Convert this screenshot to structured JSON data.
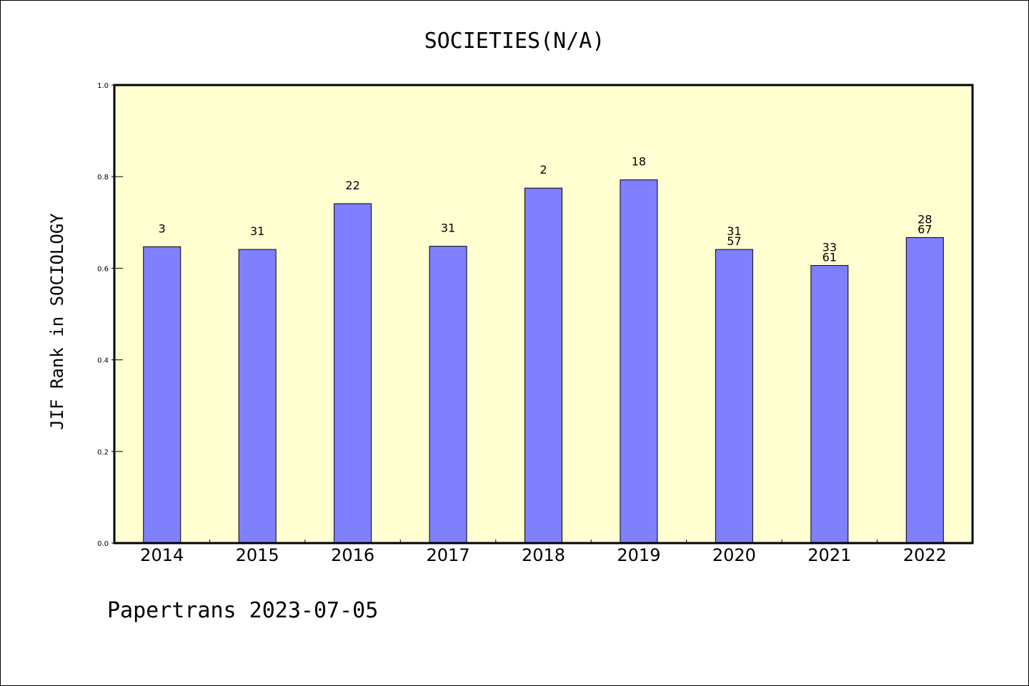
{
  "chart_data": {
    "type": "bar",
    "title": "SOCIETIES(N/A)",
    "ylabel": "JIF Rank in SOCIOLOGY",
    "xlabel": "",
    "ylim": [
      0,
      1
    ],
    "yticks": [
      "0.0",
      "0.2",
      "0.4",
      "0.6",
      "0.8",
      "1.0"
    ],
    "grid": false,
    "categories": [
      "2014",
      "2015",
      "2016",
      "2017",
      "2018",
      "2019",
      "2020",
      "2021",
      "2022"
    ],
    "values": [
      0.647,
      0.641,
      0.741,
      0.648,
      0.775,
      0.793,
      0.641,
      0.606,
      0.667
    ],
    "bar_labels": [
      [
        "3"
      ],
      [
        "31"
      ],
      [
        "22"
      ],
      [
        "31"
      ],
      [
        "2"
      ],
      [
        "18"
      ],
      [
        "31",
        "57"
      ],
      [
        "33",
        "61"
      ],
      [
        "28",
        "67"
      ]
    ],
    "colors": {
      "plot_background": "#ffffd2",
      "bar_fill": "#8080ff",
      "bar_stroke": "#000000"
    }
  },
  "footer": "Papertrans 2023-07-05"
}
